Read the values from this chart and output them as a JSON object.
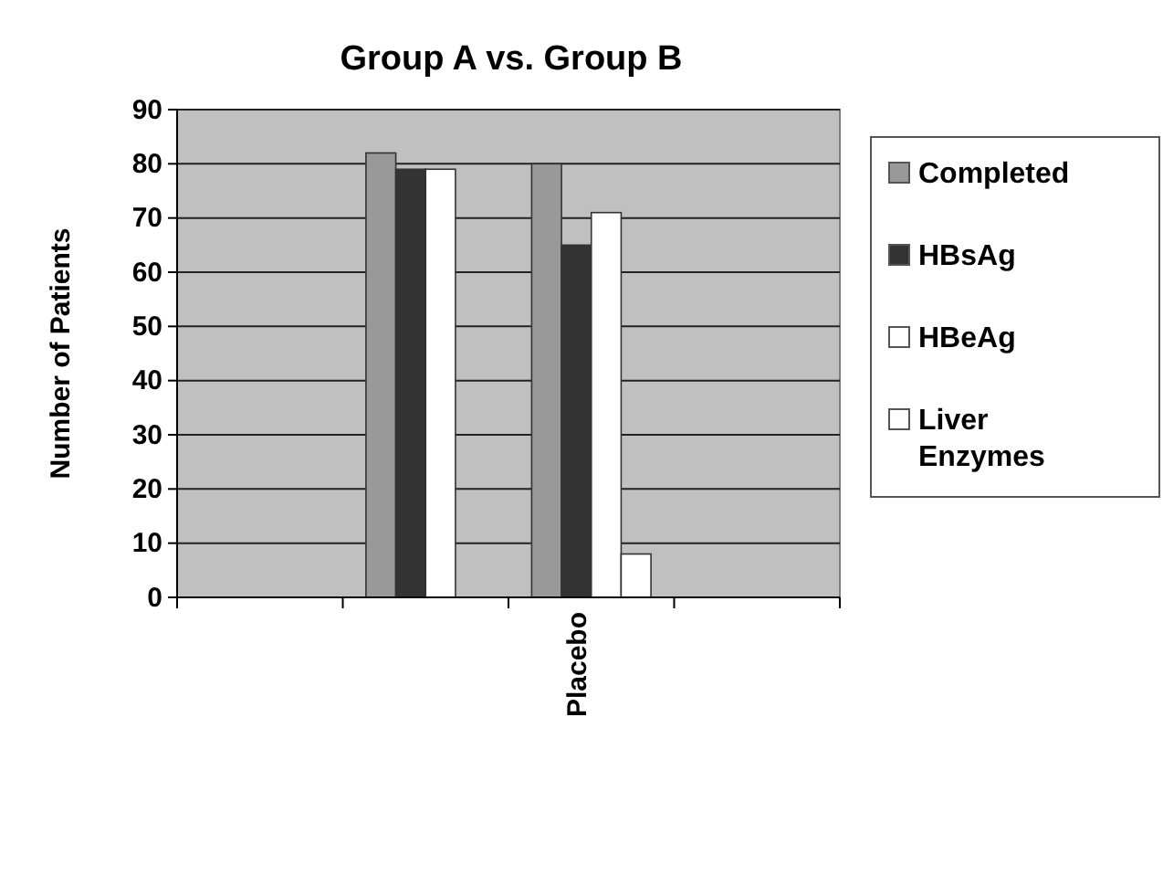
{
  "chart_data": {
    "type": "bar",
    "title": "Group A vs. Group B",
    "ylabel": "Number of Patients",
    "categories": [
      null,
      null,
      "Placebo",
      null
    ],
    "series": [
      {
        "name": "Completed",
        "color": "#999999",
        "values": [
          null,
          82,
          80,
          null
        ]
      },
      {
        "name": "HBsAg",
        "color": "#333333",
        "values": [
          null,
          79,
          65,
          null
        ]
      },
      {
        "name": "HBeAg",
        "color": "#ffffff",
        "values": [
          null,
          79,
          71,
          null
        ]
      },
      {
        "name": "Liver Enzymes",
        "color": "#ffffff",
        "values": [
          null,
          null,
          8,
          null
        ]
      }
    ],
    "ylim": [
      0,
      90
    ],
    "yticks": [
      0,
      10,
      20,
      30,
      40,
      50,
      60,
      70,
      80,
      90
    ],
    "grid": "y",
    "legend": "right"
  }
}
